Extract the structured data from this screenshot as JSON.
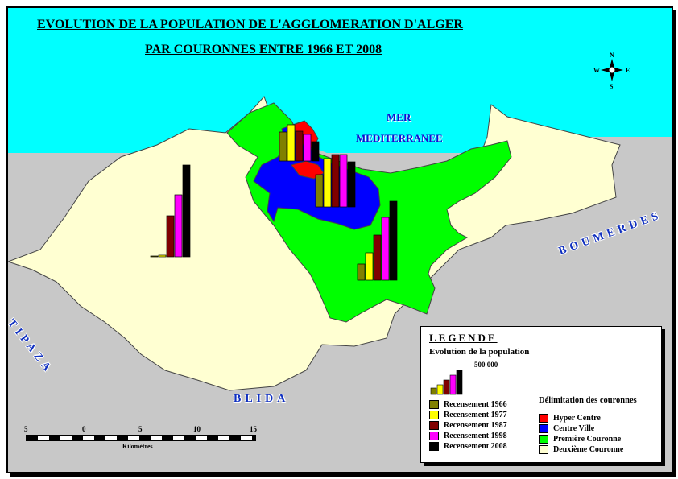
{
  "title": {
    "line1": "EVOLUTION DE LA POPULATION DE L'AGGLOMERATION D'ALGER",
    "line2": "PAR COURONNES ENTRE 1966 ET 2008"
  },
  "sea": {
    "line1": "MER",
    "line2": "MEDITERRANEE"
  },
  "regions": {
    "tipaza": "TIPAZA",
    "blida": "BLIDA",
    "boumerdes": "BOUMERDES"
  },
  "compass": {
    "n": "N",
    "s": "S",
    "e": "E",
    "w": "W"
  },
  "colors": {
    "sea": "#00ffff",
    "outside": "#c8c8c8",
    "hyper_centre": "#ff0000",
    "centre_ville": "#0000ff",
    "premiere_couronne": "#00ff00",
    "deuxieme_couronne": "#ffffd2"
  },
  "legend": {
    "title": "LEGENDE",
    "subtitle": "Evolution de la population",
    "scale_value": "500 000",
    "census": [
      {
        "label": "Recensement 1966",
        "color": "#808000"
      },
      {
        "label": "Recensement 1977",
        "color": "#ffff00"
      },
      {
        "label": "Recensement 1987",
        "color": "#800000"
      },
      {
        "label": "Recensement 1998",
        "color": "#ff00ff"
      },
      {
        "label": "Recensement 2008",
        "color": "#000000"
      }
    ],
    "couronnes_heading": "Délimitation des couronnes",
    "couronnes": [
      {
        "label": "Hyper Centre",
        "color": "#ff0000"
      },
      {
        "label": "Centre Ville",
        "color": "#0000ff"
      },
      {
        "label": "Première Couronne",
        "color": "#00ff00"
      },
      {
        "label": "Deuxième Couronne",
        "color": "#ffffd2"
      }
    ]
  },
  "scale_bar": {
    "ticks": [
      "5",
      "0",
      "5",
      "10",
      "15"
    ],
    "unit": "Kilomètres"
  },
  "chart_data": {
    "type": "bar",
    "categories": [
      "1966",
      "1977",
      "1987",
      "1998",
      "2008"
    ],
    "unit_reference": 500000,
    "series": [
      {
        "name": "Hyper Centre",
        "values": [
          360000,
          450000,
          370000,
          330000,
          240000
        ]
      },
      {
        "name": "Centre Ville",
        "values": [
          400000,
          600000,
          650000,
          650000,
          560000
        ]
      },
      {
        "name": "Première Couronne",
        "values": [
          200000,
          340000,
          560000,
          780000,
          980000
        ]
      },
      {
        "name": "Deuxième Couronne",
        "values": [
          10000,
          20000,
          510000,
          770000,
          1140000
        ]
      }
    ]
  }
}
